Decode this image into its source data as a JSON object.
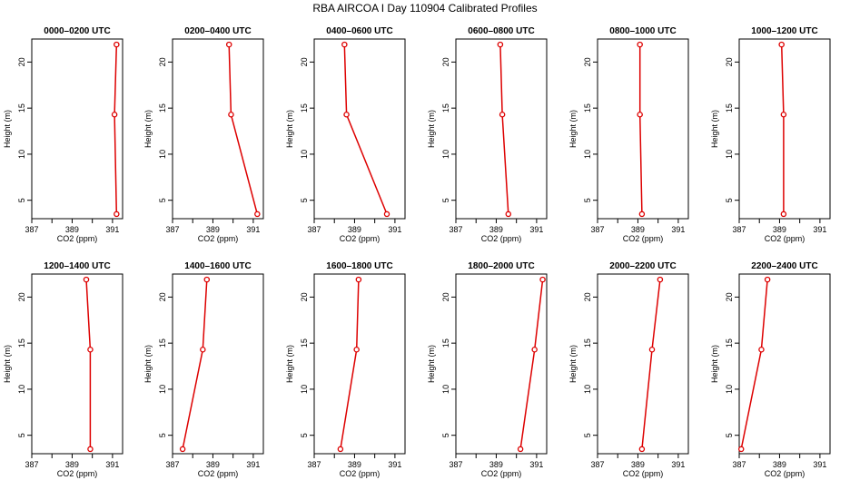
{
  "chart_data": {
    "type": "line",
    "title": "RBA AIRCOA I  Day 110904  Calibrated Profiles",
    "xlabel": "CO2 (ppm)",
    "ylabel": "Height (m)",
    "xlim": [
      387,
      391.5
    ],
    "ylim": [
      3,
      22.5
    ],
    "xticks": [
      "387",
      "",
      "389",
      "",
      "391"
    ],
    "yticks": [
      "5",
      "10",
      "15",
      "20"
    ],
    "heights": [
      3.5,
      14.3,
      21.9
    ],
    "grid": false,
    "line_color": "#dd0000",
    "panels": [
      {
        "title": "0000–0200 UTC",
        "co2": [
          391.2,
          391.1,
          391.2
        ]
      },
      {
        "title": "0200–0400 UTC",
        "co2": [
          391.2,
          389.9,
          389.8
        ]
      },
      {
        "title": "0400–0600 UTC",
        "co2": [
          390.6,
          388.6,
          388.5
        ]
      },
      {
        "title": "0600–0800 UTC",
        "co2": [
          389.6,
          389.3,
          389.2
        ]
      },
      {
        "title": "0800–1000 UTC",
        "co2": [
          389.2,
          389.1,
          389.1
        ]
      },
      {
        "title": "1000–1200 UTC",
        "co2": [
          389.2,
          389.2,
          389.1
        ]
      },
      {
        "title": "1200–1400 UTC",
        "co2": [
          389.9,
          389.9,
          389.7
        ]
      },
      {
        "title": "1400–1600 UTC",
        "co2": [
          387.5,
          388.5,
          388.7
        ]
      },
      {
        "title": "1600–1800 UTC",
        "co2": [
          388.3,
          389.1,
          389.2
        ]
      },
      {
        "title": "1800–2000 UTC",
        "co2": [
          390.2,
          390.9,
          391.3
        ]
      },
      {
        "title": "2000–2200 UTC",
        "co2": [
          389.2,
          389.7,
          390.1
        ]
      },
      {
        "title": "2200–2400 UTC",
        "co2": [
          387.1,
          388.1,
          388.4
        ]
      }
    ]
  }
}
